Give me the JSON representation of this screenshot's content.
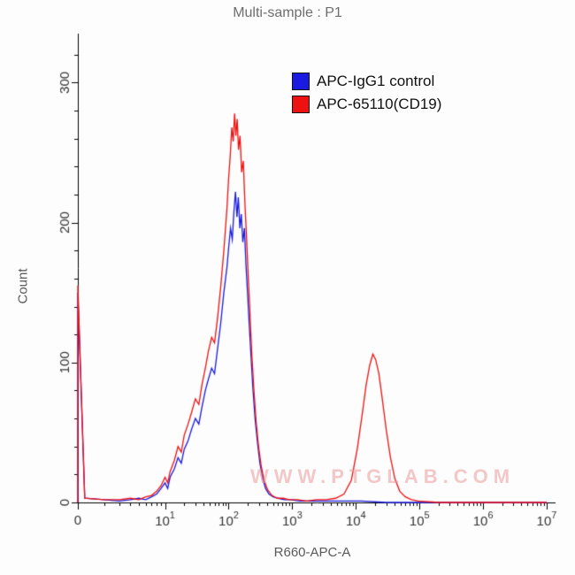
{
  "title": "Multi-sample : P1",
  "watermark": "WWW.PTGLAB.COM",
  "chart_data": {
    "type": "line",
    "subtype": "flow-cytometry-histogram-overlay",
    "title": "Multi-sample : P1",
    "xlabel": "R660-APC-A",
    "ylabel": "Count",
    "ylim": [
      0,
      335
    ],
    "y_ticks": [
      0,
      100,
      200,
      300
    ],
    "y_minor_step": 20,
    "grid": false,
    "legend_position": "top-right-inside",
    "x_axis": {
      "scale": "log-with-zero",
      "first_segment_fraction": 0.186,
      "decades": 6
    },
    "x_ticks": [
      {
        "label": "0",
        "value": 0
      },
      {
        "base": "10",
        "exp": "1",
        "value": 10
      },
      {
        "base": "10",
        "exp": "2",
        "value": 100
      },
      {
        "base": "10",
        "exp": "3",
        "value": 1000
      },
      {
        "base": "10",
        "exp": "4",
        "value": 10000
      },
      {
        "base": "10",
        "exp": "5",
        "value": 100000
      },
      {
        "base": "10",
        "exp": "6",
        "value": 1000000
      },
      {
        "base": "10",
        "exp": "7",
        "value": 10000000
      }
    ],
    "series": [
      {
        "name": "APC-IgG1 control",
        "color": "#1a1ae0",
        "points": [
          [
            0,
            0
          ],
          [
            0,
            150
          ],
          [
            1.2,
            3
          ],
          [
            2,
            2
          ],
          [
            3,
            1
          ],
          [
            4,
            2
          ],
          [
            5,
            3
          ],
          [
            6,
            2
          ],
          [
            7,
            4
          ],
          [
            8,
            6
          ],
          [
            9,
            10
          ],
          [
            10,
            14
          ],
          [
            11,
            10
          ],
          [
            12,
            18
          ],
          [
            14,
            24
          ],
          [
            16,
            32
          ],
          [
            18,
            28
          ],
          [
            20,
            38
          ],
          [
            23,
            44
          ],
          [
            26,
            52
          ],
          [
            30,
            60
          ],
          [
            34,
            56
          ],
          [
            38,
            68
          ],
          [
            43,
            80
          ],
          [
            48,
            88
          ],
          [
            54,
            96
          ],
          [
            60,
            92
          ],
          [
            67,
            110
          ],
          [
            75,
            128
          ],
          [
            84,
            150
          ],
          [
            94,
            168
          ],
          [
            100,
            182
          ],
          [
            107,
            196
          ],
          [
            114,
            188
          ],
          [
            121,
            208
          ],
          [
            128,
            222
          ],
          [
            135,
            204
          ],
          [
            142,
            218
          ],
          [
            150,
            196
          ],
          [
            158,
            206
          ],
          [
            167,
            186
          ],
          [
            177,
            196
          ],
          [
            187,
            170
          ],
          [
            198,
            150
          ],
          [
            210,
            128
          ],
          [
            225,
            104
          ],
          [
            240,
            82
          ],
          [
            260,
            60
          ],
          [
            285,
            42
          ],
          [
            310,
            28
          ],
          [
            340,
            18
          ],
          [
            380,
            10
          ],
          [
            430,
            6
          ],
          [
            500,
            4
          ],
          [
            600,
            3
          ],
          [
            750,
            2
          ],
          [
            950,
            2
          ],
          [
            1300,
            1
          ],
          [
            2000,
            1
          ],
          [
            3500,
            1
          ],
          [
            6000,
            1
          ],
          [
            12000,
            1
          ],
          [
            30000,
            0
          ],
          [
            100000,
            0
          ],
          [
            1000000,
            0
          ],
          [
            10000000,
            0
          ]
        ]
      },
      {
        "name": "APC-65110(CD19)",
        "color": "#ee1111",
        "points": [
          [
            0,
            0
          ],
          [
            0,
            155
          ],
          [
            1.2,
            3
          ],
          [
            2,
            2
          ],
          [
            3,
            2
          ],
          [
            4,
            3
          ],
          [
            5,
            2
          ],
          [
            6,
            4
          ],
          [
            7,
            5
          ],
          [
            8,
            8
          ],
          [
            9,
            12
          ],
          [
            10,
            18
          ],
          [
            11,
            14
          ],
          [
            12,
            22
          ],
          [
            14,
            30
          ],
          [
            16,
            40
          ],
          [
            18,
            36
          ],
          [
            20,
            48
          ],
          [
            23,
            56
          ],
          [
            26,
            64
          ],
          [
            30,
            74
          ],
          [
            34,
            70
          ],
          [
            38,
            84
          ],
          [
            43,
            96
          ],
          [
            48,
            108
          ],
          [
            54,
            118
          ],
          [
            60,
            114
          ],
          [
            67,
            132
          ],
          [
            75,
            154
          ],
          [
            84,
            180
          ],
          [
            94,
            210
          ],
          [
            100,
            232
          ],
          [
            106,
            248
          ],
          [
            112,
            268
          ],
          [
            118,
            258
          ],
          [
            124,
            278
          ],
          [
            130,
            262
          ],
          [
            136,
            274
          ],
          [
            143,
            252
          ],
          [
            151,
            262
          ],
          [
            160,
            236
          ],
          [
            170,
            244
          ],
          [
            180,
            214
          ],
          [
            190,
            192
          ],
          [
            202,
            164
          ],
          [
            215,
            138
          ],
          [
            230,
            108
          ],
          [
            248,
            82
          ],
          [
            270,
            58
          ],
          [
            295,
            40
          ],
          [
            325,
            26
          ],
          [
            360,
            16
          ],
          [
            410,
            9
          ],
          [
            480,
            5
          ],
          [
            580,
            3
          ],
          [
            720,
            3
          ],
          [
            900,
            2
          ],
          [
            1200,
            2
          ],
          [
            1700,
            1
          ],
          [
            2400,
            2
          ],
          [
            3400,
            2
          ],
          [
            4800,
            3
          ],
          [
            6500,
            6
          ],
          [
            8500,
            16
          ],
          [
            10500,
            38
          ],
          [
            12500,
            62
          ],
          [
            14500,
            84
          ],
          [
            16500,
            98
          ],
          [
            18500,
            106
          ],
          [
            20500,
            102
          ],
          [
            23000,
            92
          ],
          [
            26000,
            74
          ],
          [
            30000,
            52
          ],
          [
            35000,
            32
          ],
          [
            41000,
            17
          ],
          [
            49000,
            8
          ],
          [
            60000,
            4
          ],
          [
            75000,
            2
          ],
          [
            95000,
            1
          ],
          [
            200000,
            0
          ],
          [
            1000000,
            0
          ],
          [
            10000000,
            0
          ]
        ]
      }
    ]
  }
}
